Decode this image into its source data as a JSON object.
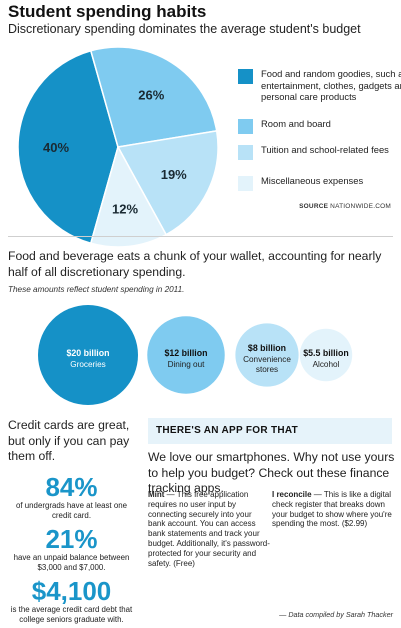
{
  "title": "Student spending habits",
  "subtitle": "Discretionary spending dominates the average student's budget",
  "chart_data": [
    {
      "type": "pie",
      "title": "",
      "slices": [
        {
          "label": "Food and random goodies, such as entertainment, clothes, gadgets and personal care products",
          "value": 40,
          "label_text": "40%",
          "color": "#1591c7"
        },
        {
          "label": "Room and board",
          "value": 26,
          "label_text": "26%",
          "color": "#7fcbf0"
        },
        {
          "label": "Tuition and school-related fees",
          "value": 19,
          "label_text": "19%",
          "color": "#b8e2f7"
        },
        {
          "label": "Miscellaneous expenses",
          "value": 12,
          "label_text": "12%",
          "color": "#e3f3fb"
        }
      ]
    },
    {
      "type": "bubble",
      "note": "These amounts reflect student spending in 2011.",
      "bubbles": [
        {
          "label": "Groceries",
          "value": 20,
          "value_text": "$20 billion",
          "color": "#1591c7"
        },
        {
          "label": "Dining out",
          "value": 12,
          "value_text": "$12 billion",
          "color": "#7fcbf0"
        },
        {
          "label": "Convenience stores",
          "value": 8,
          "value_text": "$8 billion",
          "color": "#b8e2f7"
        },
        {
          "label": "Alcohol",
          "value": 5.5,
          "value_text": "$5.5 billion",
          "color": "#e3f3fb"
        }
      ]
    }
  ],
  "source": {
    "label": "SOURCE",
    "text": "NATIONWIDE.COM"
  },
  "headline2": "Food and beverage eats a chunk of your wallet, accounting for nearly half of all discretionary spending.",
  "note": "These amounts reflect student spending in 2011.",
  "credit_cards": {
    "intro": "Credit cards are great, but only if you can pay them off.",
    "stats": [
      {
        "number": "84%",
        "text": "of undergrads have at least one credit card."
      },
      {
        "number": "21%",
        "text": "have an unpaid balance between $3,000 and $7,000."
      },
      {
        "number": "$4,100",
        "text": "is the average credit card debt that college seniors graduate with."
      }
    ]
  },
  "app": {
    "header": "THERE'S AN APP FOR THAT",
    "intro": "We love our smartphones.  Why not use yours to help you budget? Check out these finance tracking apps.",
    "items": [
      {
        "name": "Mint",
        "desc": " — This free application requires no user input by connecting securely into your bank account. You can access bank statements and track your budget. Additionally, it's password-protected for your security and safety. (Free)"
      },
      {
        "name": "I reconcile",
        "desc": " — This is like a digital check register that breaks down your budget to show where you're spending the most. ($2.99)"
      }
    ]
  },
  "credit": "— Data compiled by Sarah Thacker",
  "colors": {
    "dark": "#1591c7",
    "mid": "#7fcbf0",
    "light": "#b8e2f7",
    "pale": "#e3f3fb",
    "stat": "#1a95c9"
  }
}
